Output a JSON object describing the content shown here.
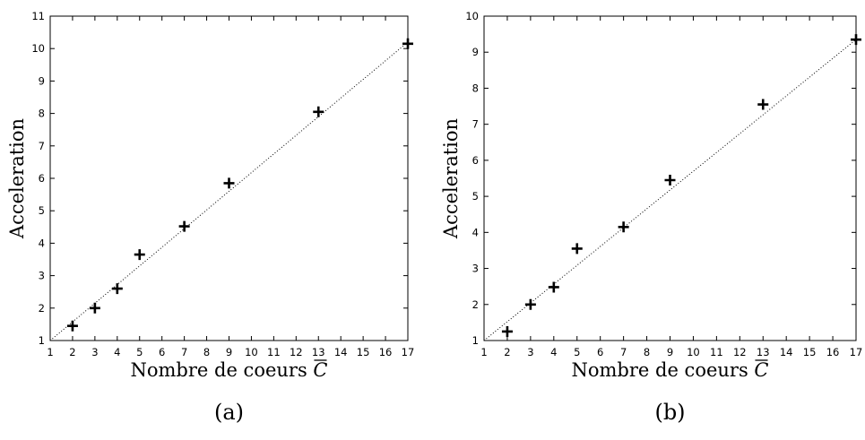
{
  "chart_data": [
    {
      "type": "scatter",
      "caption": "(a)",
      "xlabel": "Nombre de coeurs",
      "xlabel_symbol": "C",
      "ylabel": "Acceleration",
      "xlim": [
        1,
        17
      ],
      "ylim": [
        1,
        11
      ],
      "xticks": [
        1,
        2,
        3,
        4,
        5,
        6,
        7,
        8,
        9,
        10,
        11,
        12,
        13,
        14,
        15,
        16,
        17
      ],
      "yticks": [
        1,
        2,
        3,
        4,
        5,
        6,
        7,
        8,
        9,
        10,
        11
      ],
      "grid": false,
      "marker": "plus",
      "reference_line": {
        "style": "dotted",
        "from": [
          1,
          1
        ],
        "to": [
          17,
          10.2
        ]
      },
      "series": [
        {
          "x": [
            2,
            3,
            4,
            5,
            7,
            9,
            13,
            17
          ],
          "y": [
            1.45,
            2.0,
            2.6,
            3.65,
            4.52,
            5.85,
            8.05,
            10.15
          ]
        }
      ]
    },
    {
      "type": "scatter",
      "caption": "(b)",
      "xlabel": "Nombre de coeurs",
      "xlabel_symbol": "C",
      "ylabel": "Acceleration",
      "xlim": [
        1,
        17
      ],
      "ylim": [
        1,
        10
      ],
      "xticks": [
        1,
        2,
        3,
        4,
        5,
        6,
        7,
        8,
        9,
        10,
        11,
        12,
        13,
        14,
        15,
        16,
        17
      ],
      "yticks": [
        1,
        2,
        3,
        4,
        5,
        6,
        7,
        8,
        9,
        10
      ],
      "grid": false,
      "marker": "plus",
      "reference_line": {
        "style": "dotted",
        "from": [
          1,
          1
        ],
        "to": [
          17,
          9.35
        ]
      },
      "series": [
        {
          "x": [
            2,
            3,
            4,
            5,
            7,
            9,
            13,
            17
          ],
          "y": [
            1.25,
            2.0,
            2.48,
            3.55,
            4.15,
            5.45,
            7.55,
            9.35
          ]
        }
      ]
    }
  ]
}
